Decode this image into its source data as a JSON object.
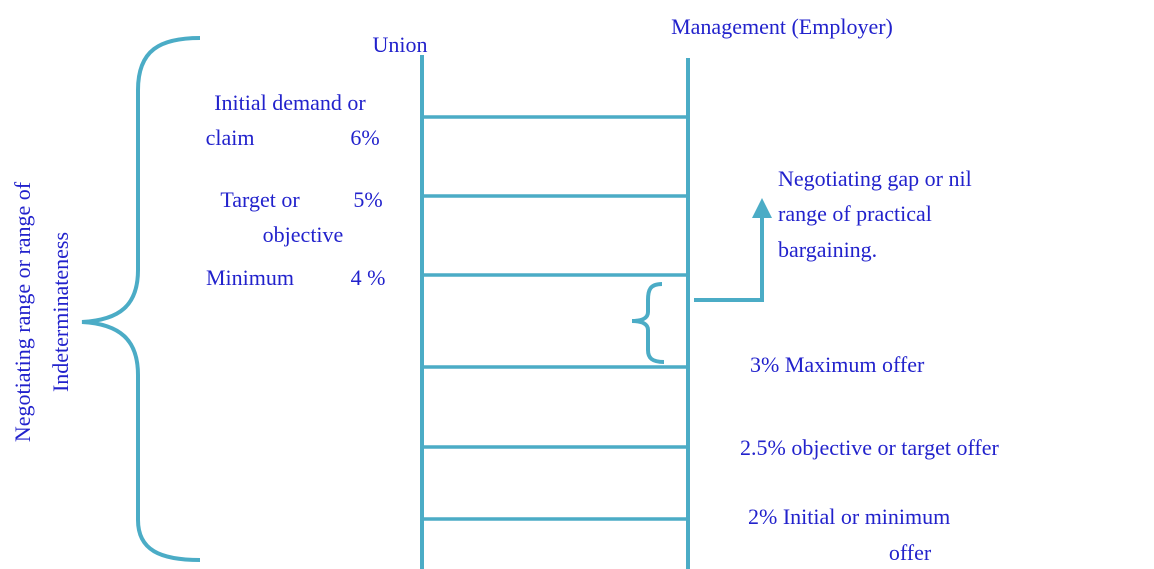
{
  "headers": {
    "union": "Union",
    "management": "Management (Employer)"
  },
  "range_label": [
    "Negotiating range or range of",
    "Indeterminateness"
  ],
  "union_levels": [
    {
      "label": [
        "Initial demand or",
        "claim"
      ],
      "value": "6%"
    },
    {
      "label": [
        "Target or",
        "objective"
      ],
      "value": "5%"
    },
    {
      "label": [
        "Minimum"
      ],
      "value": "4 %"
    }
  ],
  "gap_label": [
    "Negotiating gap or nil",
    "range of practical",
    "bargaining."
  ],
  "management_levels": [
    {
      "label": [
        "3% Maximum offer"
      ]
    },
    {
      "label": [
        "2.5% objective or target offer"
      ]
    },
    {
      "label": [
        "2% Initial or minimum",
        "offer"
      ]
    }
  ]
}
